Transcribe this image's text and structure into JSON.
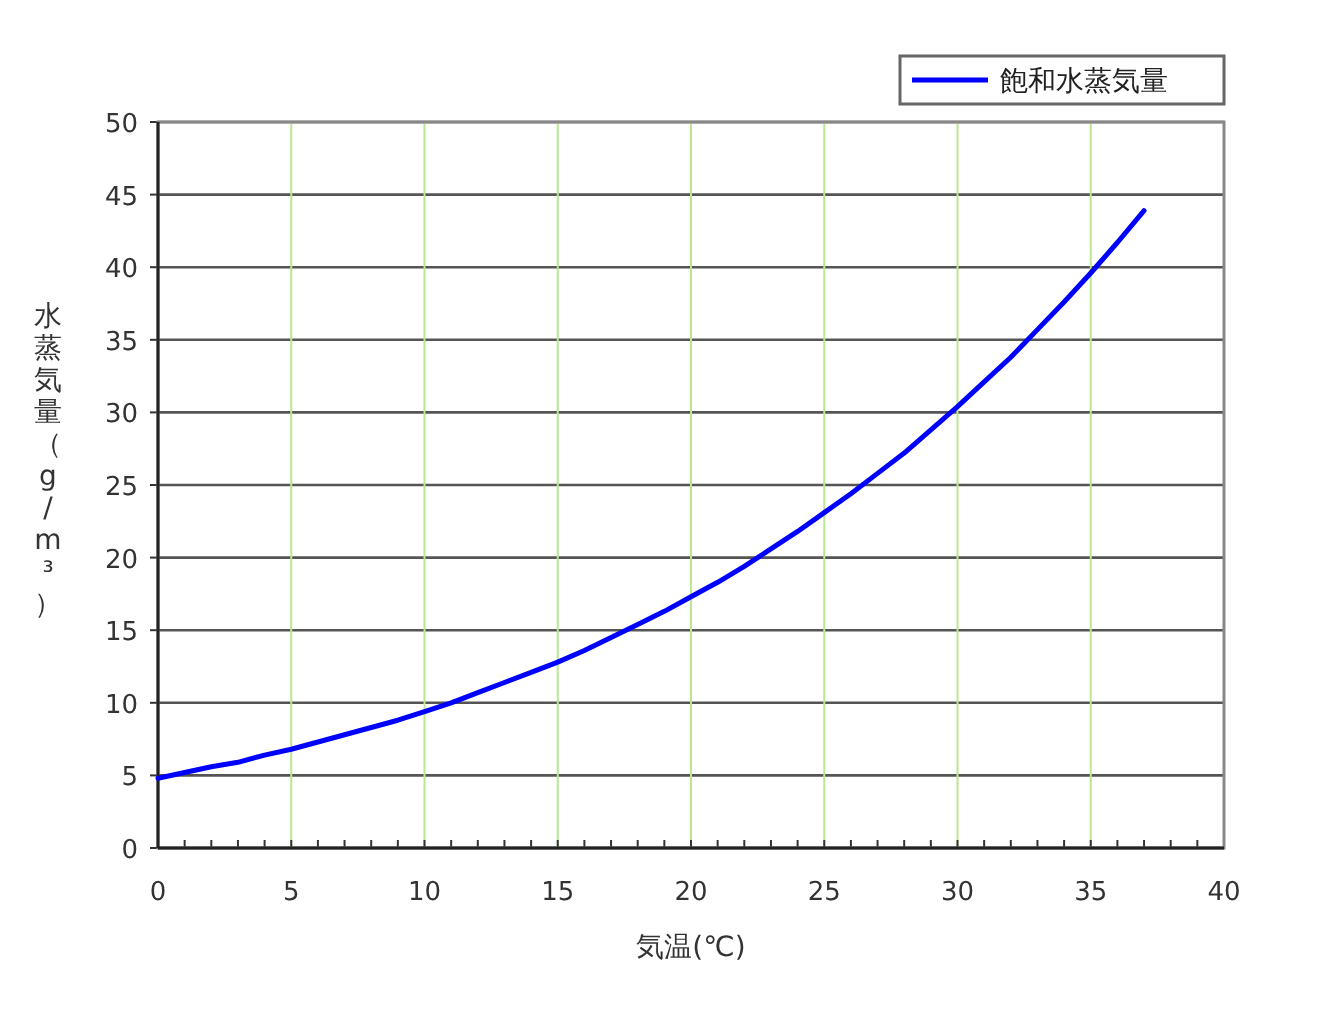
{
  "chart_data": {
    "type": "line",
    "xlabel": "気温(℃)",
    "ylabel": "水蒸気量（g/m³）",
    "x": [
      0,
      1,
      2,
      3,
      4,
      5,
      6,
      7,
      8,
      9,
      10,
      11,
      12,
      13,
      14,
      15,
      16,
      17,
      18,
      19,
      20,
      21,
      22,
      23,
      24,
      25,
      26,
      27,
      28,
      29,
      30,
      31,
      32,
      33,
      34,
      35,
      36,
      37
    ],
    "series": [
      {
        "name": "飽和水蒸気量",
        "color": "#0000ff",
        "values": [
          4.8,
          5.2,
          5.6,
          5.9,
          6.4,
          6.8,
          7.3,
          7.8,
          8.3,
          8.8,
          9.4,
          10.0,
          10.7,
          11.4,
          12.1,
          12.8,
          13.6,
          14.5,
          15.4,
          16.3,
          17.3,
          18.3,
          19.4,
          20.6,
          21.8,
          23.1,
          24.4,
          25.8,
          27.2,
          28.8,
          30.4,
          32.1,
          33.8,
          35.7,
          37.6,
          39.6,
          41.7,
          43.9
        ]
      }
    ],
    "xlim": [
      0,
      40
    ],
    "xticks": [
      0,
      {
        "value": 1,
        "label": null
      },
      {
        "value": 2,
        "label": null
      },
      {
        "value": 3,
        "label": null
      },
      {
        "value": 4,
        "label": null
      },
      5,
      {
        "value": 6,
        "label": null
      },
      {
        "value": 7,
        "label": null
      },
      {
        "value": 8,
        "label": null
      },
      {
        "value": 9,
        "label": null
      },
      10,
      {
        "value": 11,
        "label": null
      },
      {
        "value": 12,
        "label": null
      },
      {
        "value": 13,
        "label": null
      },
      {
        "value": 14,
        "label": null
      },
      15,
      {
        "value": 16,
        "label": null
      },
      {
        "value": 17,
        "label": null
      },
      {
        "value": 18,
        "label": null
      },
      {
        "value": 19,
        "label": null
      },
      20,
      {
        "value": 21,
        "label": null
      },
      {
        "value": 22,
        "label": null
      },
      {
        "value": 23,
        "label": null
      },
      {
        "value": 24,
        "label": null
      },
      25,
      {
        "value": 26,
        "label": null
      },
      {
        "value": 27,
        "label": null
      },
      {
        "value": 28,
        "label": null
      },
      {
        "value": 29,
        "label": null
      },
      30,
      {
        "value": 31,
        "label": null
      },
      {
        "value": 32,
        "label": null
      },
      {
        "value": 33,
        "label": null
      },
      {
        "value": 34,
        "label": null
      },
      35,
      {
        "value": 36,
        "label": null
      },
      {
        "value": 37,
        "label": null
      },
      {
        "value": 38,
        "label": null
      },
      {
        "value": 39,
        "label": null
      },
      40
    ],
    "ylim": [
      0,
      50
    ],
    "yticks": [
      0,
      5,
      10,
      15,
      20,
      25,
      30,
      35,
      40,
      45,
      50
    ],
    "grid": true,
    "legend": "top right",
    "marker": "none",
    "line_style": "solid"
  }
}
